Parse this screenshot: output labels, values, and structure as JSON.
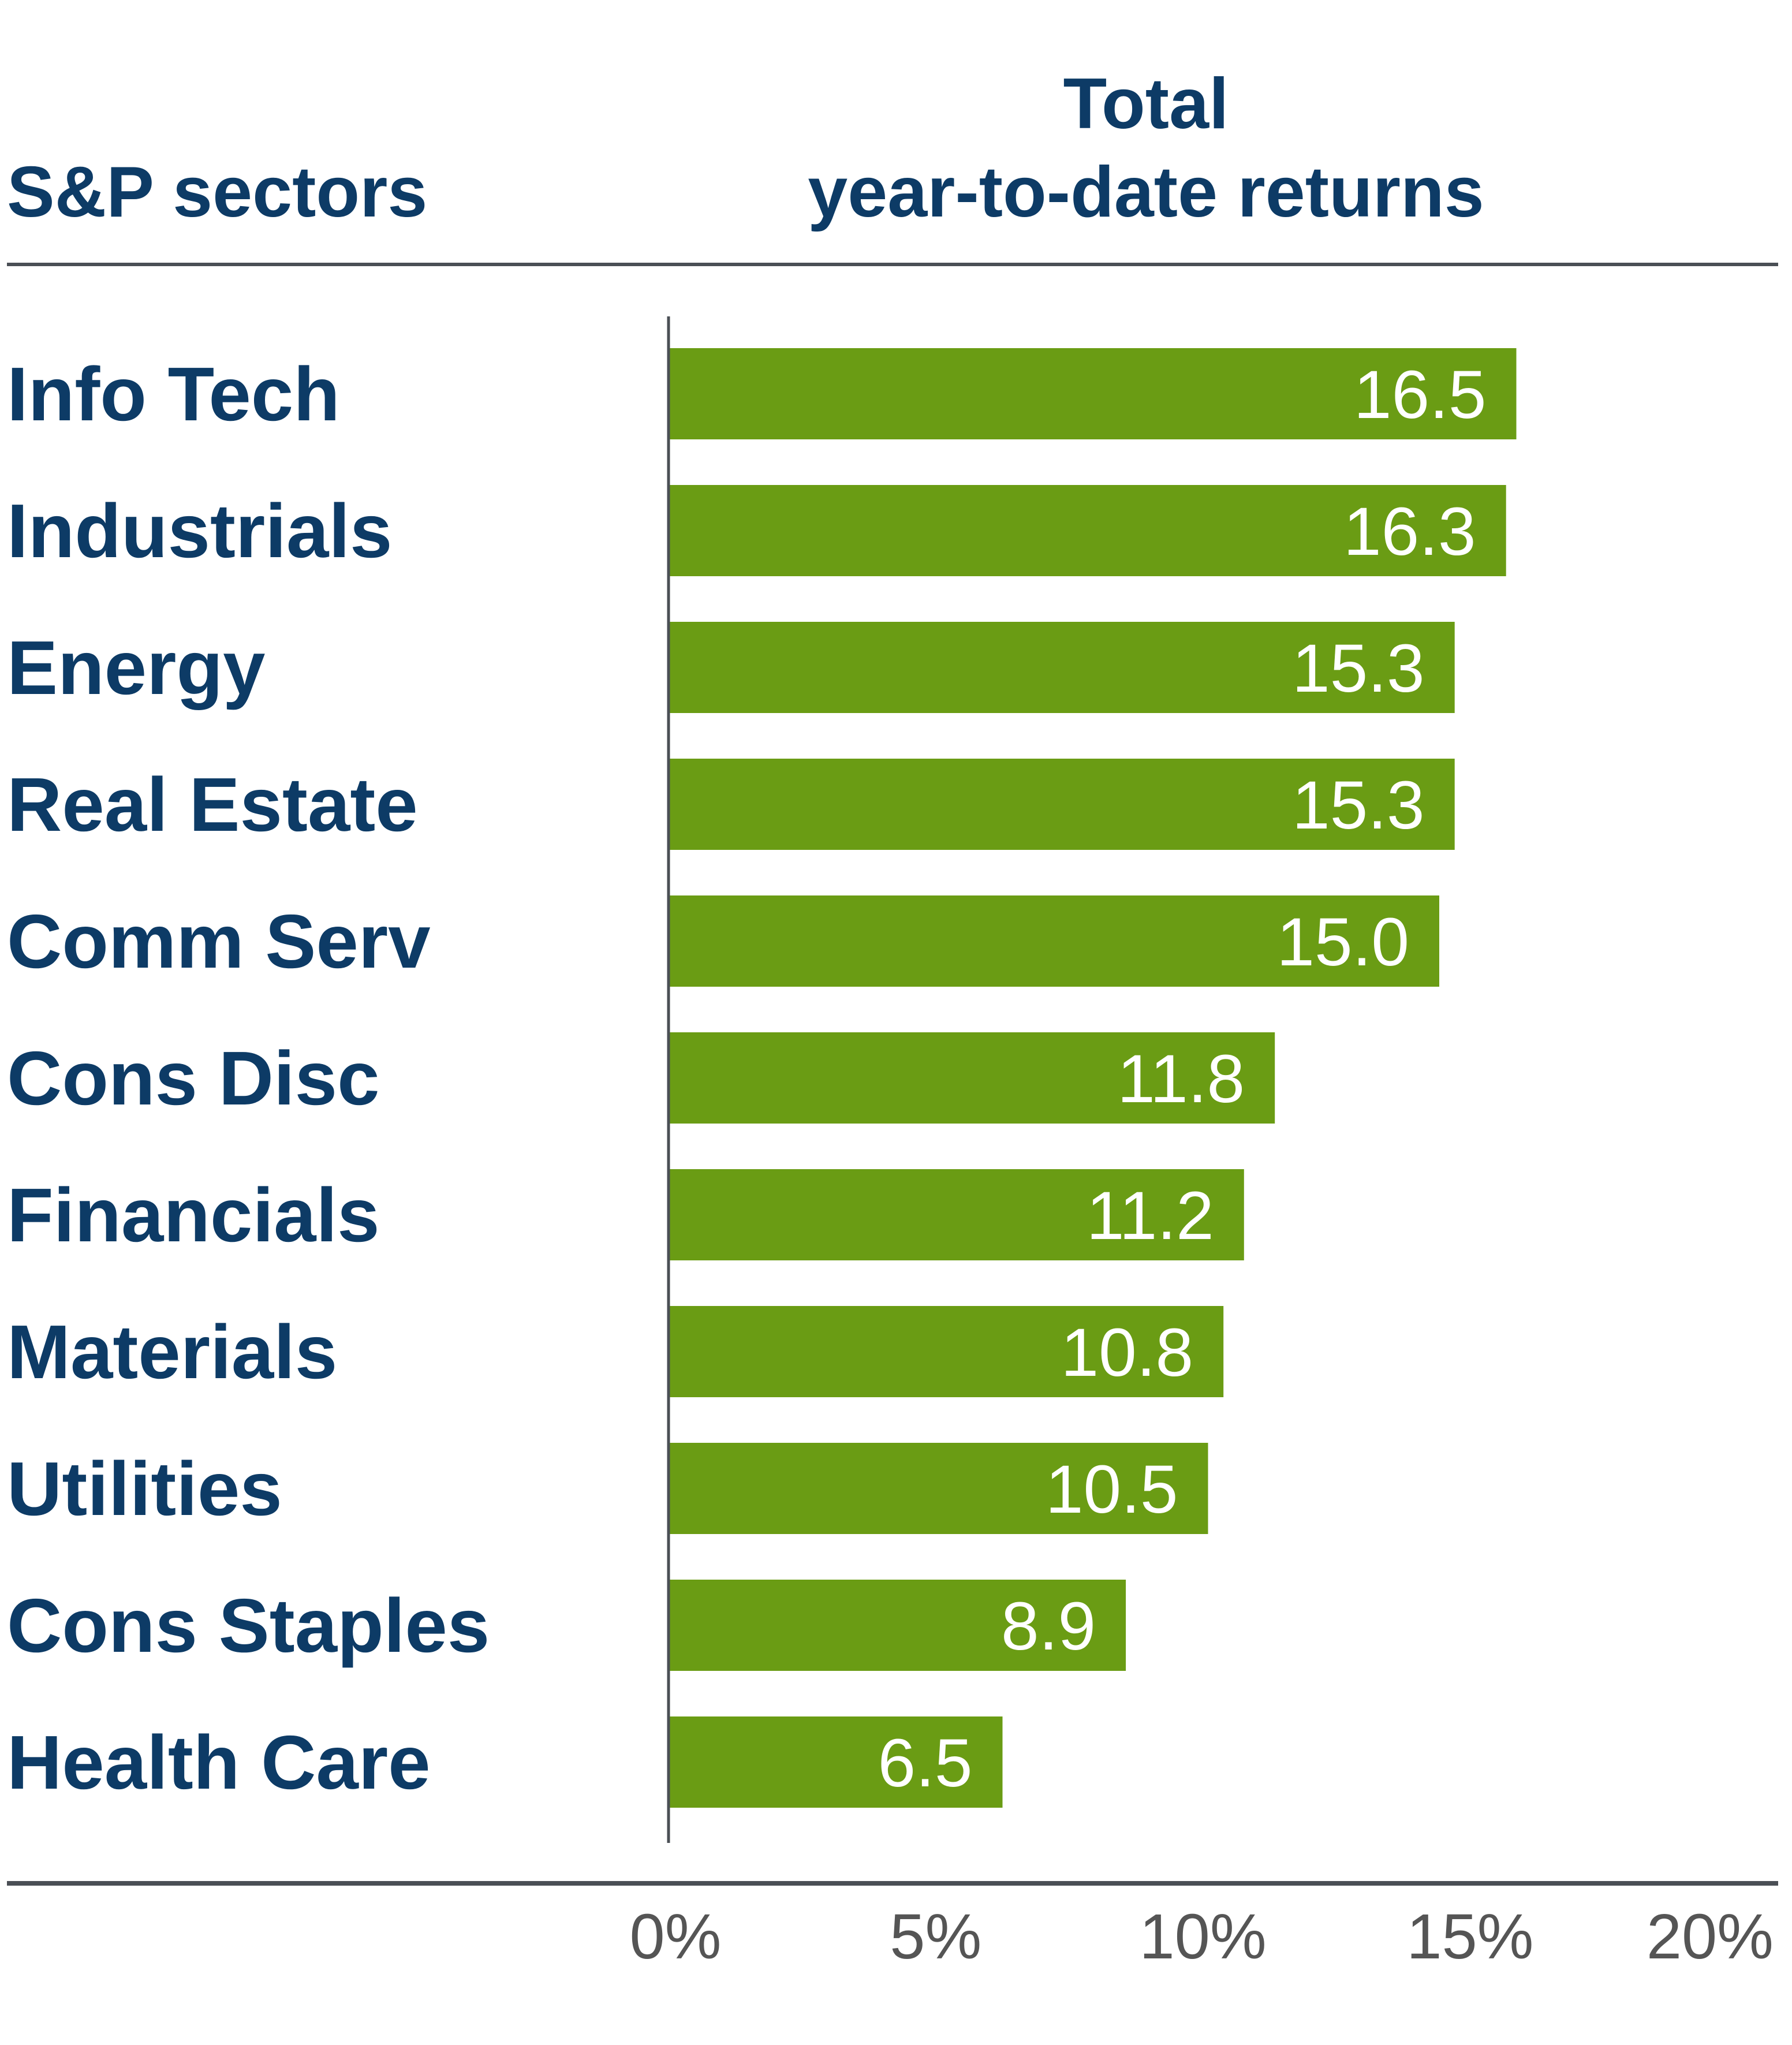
{
  "header": {
    "sectors_label": "S&P sectors",
    "returns_title_line1": "Total",
    "returns_title_line2": "year-to-date returns"
  },
  "chart_data": {
    "type": "bar",
    "orientation": "horizontal",
    "title": "Total year-to-date returns",
    "xlabel": "",
    "ylabel": "S&P sectors",
    "categories": [
      "Info Tech",
      "Industrials",
      "Energy",
      "Real Estate",
      "Comm Serv",
      "Cons Disc",
      "Financials",
      "Materials",
      "Utilities",
      "Cons Staples",
      "Health Care"
    ],
    "values": [
      16.5,
      16.3,
      15.3,
      15.3,
      15.0,
      11.8,
      11.2,
      10.8,
      10.5,
      8.9,
      6.5
    ],
    "value_labels": [
      "16.5",
      "16.3",
      "15.3",
      "15.3",
      "15.0",
      "11.8",
      "11.2",
      "10.8",
      "10.5",
      "8.9",
      "6.5"
    ],
    "xlim": [
      0,
      20
    ],
    "x_ticks": [
      0,
      5,
      10,
      15,
      20
    ],
    "x_tick_labels": [
      "0%",
      "5%",
      "10%",
      "15%",
      "20%"
    ],
    "grid": false,
    "colors": {
      "bar": "#6a9c14",
      "text": "#0d3b66",
      "rule": "#4a4f55",
      "axis": "#4a4f55",
      "tick_text": "#555555"
    }
  }
}
